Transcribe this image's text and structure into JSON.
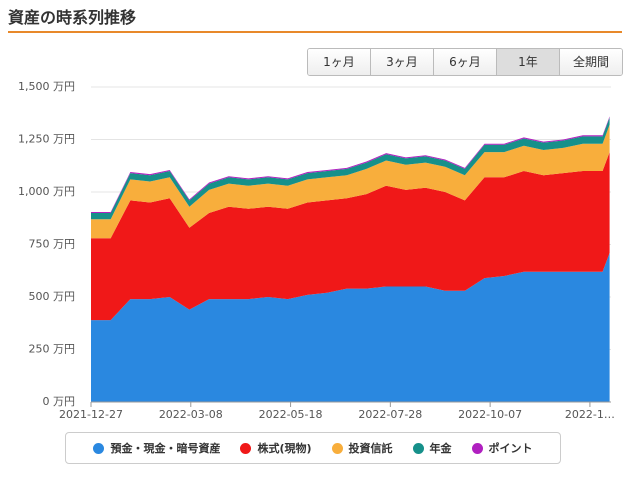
{
  "title": "資産の時系列推移",
  "buttons": [
    "1ヶ月",
    "3ヶ月",
    "6ヶ月",
    "1年",
    "全期間"
  ],
  "selected_button": 3,
  "chart_data": {
    "type": "stacked-area",
    "x": [
      "2021-12-27",
      "2022-01-10",
      "2022-01-24",
      "2022-02-07",
      "2022-02-21",
      "2022-03-07",
      "2022-03-21",
      "2022-04-04",
      "2022-04-18",
      "2022-05-02",
      "2022-05-16",
      "2022-05-30",
      "2022-06-13",
      "2022-06-27",
      "2022-07-11",
      "2022-07-25",
      "2022-08-08",
      "2022-08-22",
      "2022-09-05",
      "2022-09-19",
      "2022-10-03",
      "2022-10-17",
      "2022-10-31",
      "2022-11-14",
      "2022-11-28",
      "2022-12-12",
      "2022-12-26",
      "2022-12-31"
    ],
    "xlim": [
      "2021-12-27",
      "2023-01-01"
    ],
    "xticks": [
      "2021-12-27",
      "2022-03-08",
      "2022-05-18",
      "2022-07-28",
      "2022-10-07",
      {
        "value": "2022-12-17",
        "label": "2022-1…"
      }
    ],
    "ylim": [
      0,
      1500
    ],
    "yticks": [
      {
        "value": 0,
        "label": "0 万円"
      },
      {
        "value": 250,
        "label": "250 万円"
      },
      {
        "value": 500,
        "label": "500 万円"
      },
      {
        "value": 750,
        "label": "750 万円"
      },
      {
        "value": 1000,
        "label": "1,000 万円"
      },
      {
        "value": 1250,
        "label": "1,250 万円"
      },
      {
        "value": 1500,
        "label": "1,500 万円"
      }
    ],
    "grid": true,
    "series": [
      {
        "name": "預金・現金・暗号資産",
        "color": "#2a88e0",
        "values": [
          390,
          390,
          490,
          490,
          500,
          440,
          490,
          490,
          490,
          500,
          490,
          510,
          520,
          540,
          540,
          550,
          550,
          550,
          530,
          530,
          590,
          600,
          620,
          620,
          620,
          620,
          620,
          710
        ]
      },
      {
        "name": "株式(現物)",
        "color": "#f01818",
        "values": [
          390,
          390,
          470,
          460,
          470,
          390,
          410,
          440,
          430,
          430,
          430,
          440,
          440,
          430,
          450,
          480,
          460,
          470,
          470,
          430,
          480,
          470,
          480,
          460,
          470,
          480,
          480,
          480
        ]
      },
      {
        "name": "投資信託",
        "color": "#f8ae3c",
        "values": [
          90,
          90,
          100,
          100,
          100,
          100,
          110,
          110,
          110,
          110,
          110,
          110,
          110,
          110,
          120,
          120,
          120,
          120,
          120,
          120,
          120,
          120,
          120,
          120,
          120,
          130,
          130,
          130
        ]
      },
      {
        "name": "年金",
        "color": "#16908a",
        "values": [
          30,
          30,
          30,
          30,
          30,
          30,
          30,
          30,
          30,
          30,
          30,
          30,
          30,
          30,
          30,
          30,
          30,
          30,
          30,
          30,
          35,
          35,
          35,
          35,
          35,
          35,
          35,
          35
        ]
      },
      {
        "name": "ポイント",
        "color": "#b020c0",
        "values": [
          5,
          5,
          5,
          5,
          5,
          5,
          5,
          5,
          5,
          5,
          5,
          5,
          5,
          5,
          5,
          5,
          5,
          5,
          5,
          5,
          5,
          5,
          5,
          5,
          5,
          5,
          5,
          5
        ]
      }
    ]
  }
}
